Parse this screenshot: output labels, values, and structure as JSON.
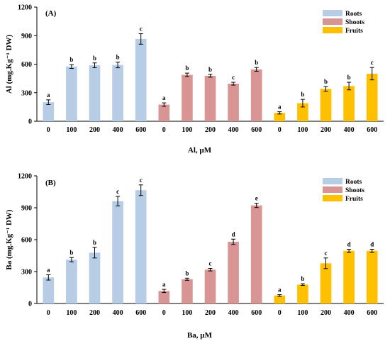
{
  "colors": {
    "Roots": "#b7cde6",
    "Shoots": "#d99594",
    "Fruits": "#ffc000"
  },
  "chart_data": [
    {
      "type": "bar",
      "panel_label": "(A)",
      "xlabel": "Al, µM",
      "ylabel": "Al (mg.Kg⁻¹ DW)",
      "ylim": [
        0,
        1200
      ],
      "yticks": [
        "0",
        "300",
        "600",
        "900",
        "1200"
      ],
      "categories": [
        "0",
        "100",
        "200",
        "400",
        "600"
      ],
      "legend_position": "top-right",
      "grid": false,
      "series": [
        {
          "name": "Roots",
          "values": [
            200,
            575,
            588,
            592,
            865
          ],
          "errors": [
            25,
            20,
            25,
            30,
            55
          ],
          "letters": [
            "a",
            "b",
            "b",
            "b",
            "c"
          ]
        },
        {
          "name": "Shoots",
          "values": [
            175,
            488,
            478,
            395,
            545
          ],
          "errors": [
            18,
            18,
            15,
            15,
            20
          ],
          "letters": [
            "a",
            "b",
            "b",
            "c",
            "b"
          ]
        },
        {
          "name": "Fruits",
          "values": [
            88,
            190,
            340,
            370,
            500
          ],
          "errors": [
            12,
            40,
            25,
            40,
            65
          ],
          "letters": [
            "a",
            "b",
            "b",
            "b",
            "c"
          ]
        }
      ]
    },
    {
      "type": "bar",
      "panel_label": "(B)",
      "xlabel": "Ba, µM",
      "ylabel": "Ba (mg.Kg⁻¹ DW)",
      "ylim": [
        0,
        1200
      ],
      "yticks": [
        "0",
        "300",
        "600",
        "900",
        "1200"
      ],
      "categories": [
        "0",
        "100",
        "200",
        "400",
        "600"
      ],
      "legend_position": "top-right",
      "grid": false,
      "series": [
        {
          "name": "Roots",
          "values": [
            245,
            412,
            478,
            962,
            1065
          ],
          "errors": [
            25,
            20,
            50,
            45,
            50
          ],
          "letters": [
            "a",
            "b",
            "b",
            "c",
            "c"
          ]
        },
        {
          "name": "Shoots",
          "values": [
            118,
            228,
            318,
            580,
            922
          ],
          "errors": [
            15,
            10,
            12,
            25,
            20
          ],
          "letters": [
            "a",
            "b",
            "c",
            "d",
            "e"
          ]
        },
        {
          "name": "Fruits",
          "values": [
            75,
            178,
            378,
            495,
            495
          ],
          "errors": [
            8,
            8,
            50,
            15,
            15
          ],
          "letters": [
            "a",
            "b",
            "c",
            "d",
            "d"
          ]
        }
      ]
    }
  ]
}
